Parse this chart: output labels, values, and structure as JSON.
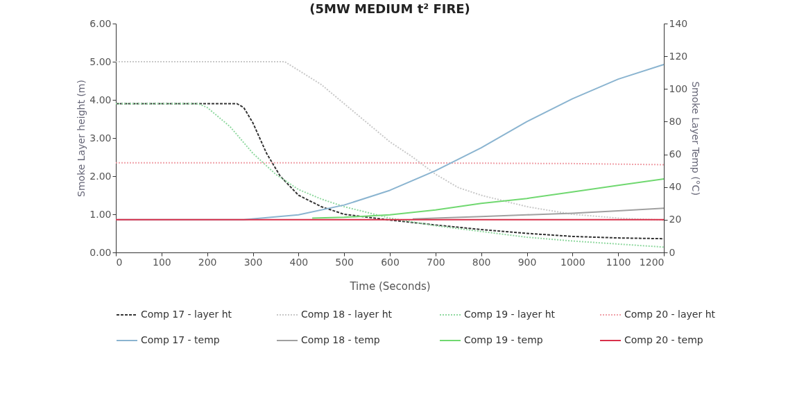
{
  "chart_data": {
    "type": "line",
    "title": "(5MW MEDIUM t² FIRE)",
    "xlabel": "Time (Seconds)",
    "ylabel": "Smoke Layer height (m)",
    "y2label": "Smoke Layer Temp (°C)",
    "xlim": [
      0,
      1200
    ],
    "xticks": [
      0,
      100,
      200,
      300,
      400,
      500,
      600,
      700,
      800,
      900,
      1000,
      1100,
      1200
    ],
    "ylim": [
      0,
      6
    ],
    "yticks": [
      {
        "value": 0,
        "label": "0.00"
      },
      {
        "value": 1,
        "label": "1.00"
      },
      {
        "value": 2,
        "label": "2.00"
      },
      {
        "value": 3,
        "label": "3.00"
      },
      {
        "value": 4,
        "label": "4.00"
      },
      {
        "value": 5,
        "label": "5.00"
      },
      {
        "value": 6,
        "label": "6.00"
      }
    ],
    "y2lim": [
      0,
      140
    ],
    "y2ticks": [
      0,
      20,
      40,
      60,
      80,
      100,
      120,
      140
    ],
    "grid": false,
    "legend": "bottom",
    "series": [
      {
        "name": "Comp 17 - layer ht",
        "color": "#333333",
        "line_style": "dashed",
        "x": [
          0,
          265,
          280,
          300,
          330,
          360,
          400,
          450,
          500,
          600,
          700,
          800,
          900,
          1000,
          1100,
          1200
        ],
        "values": [
          3.9,
          3.9,
          3.8,
          3.4,
          2.6,
          2.0,
          1.5,
          1.2,
          1.0,
          0.85,
          0.72,
          0.6,
          0.5,
          0.42,
          0.38,
          0.36
        ]
      },
      {
        "name": "Comp 18 -  layer ht",
        "color": "#c8c8c8",
        "line_style": "dotted",
        "x": [
          0,
          370,
          450,
          500,
          550,
          600,
          650,
          700,
          750,
          800,
          900,
          1000,
          1100,
          1200
        ],
        "values": [
          5.0,
          5.0,
          4.4,
          3.9,
          3.4,
          2.9,
          2.5,
          2.05,
          1.7,
          1.5,
          1.2,
          1.0,
          0.9,
          0.85
        ]
      },
      {
        "name": "Comp 19 - layer ht",
        "color": "#8fd89f",
        "line_style": "dotted",
        "x": [
          0,
          180,
          200,
          250,
          300,
          350,
          400,
          450,
          500,
          550,
          600,
          700,
          800,
          900,
          1000,
          1100,
          1200
        ],
        "values": [
          3.9,
          3.9,
          3.8,
          3.3,
          2.6,
          2.05,
          1.65,
          1.4,
          1.2,
          1.05,
          0.9,
          0.7,
          0.55,
          0.4,
          0.3,
          0.22,
          0.14
        ]
      },
      {
        "name": "Comp 20 - layer ht",
        "color": "#f0a0a8",
        "line_style": "dotted",
        "x": [
          0,
          600,
          1000,
          1200
        ],
        "values": [
          2.35,
          2.35,
          2.33,
          2.3
        ]
      },
      {
        "name": "Comp 17 - temp",
        "color": "#8ab4d0",
        "line_style": "solid",
        "axis": "y2",
        "x": [
          0,
          280,
          400,
          500,
          600,
          700,
          800,
          900,
          1000,
          1100,
          1200
        ],
        "values": [
          20,
          20,
          23,
          29,
          38,
          50,
          64,
          80,
          94,
          106,
          115
        ]
      },
      {
        "name": "Comp 18 - temp",
        "color": "#a0a0a0",
        "line_style": "solid",
        "axis": "y2",
        "x": [
          650,
          700,
          800,
          900,
          1000,
          1100,
          1200
        ],
        "values": [
          20.5,
          21,
          22,
          23,
          24,
          25.5,
          27
        ]
      },
      {
        "name": "Comp 19 - temp",
        "color": "#70d870",
        "line_style": "solid",
        "axis": "y2",
        "x": [
          430,
          500,
          600,
          700,
          800,
          900,
          1000,
          1100,
          1200
        ],
        "values": [
          21,
          21.5,
          23,
          26,
          30,
          33,
          37,
          41,
          45
        ]
      },
      {
        "name": "Comp 20 - temp",
        "color": "#d8304a",
        "line_style": "solid",
        "axis": "y2",
        "x": [
          0,
          1200
        ],
        "values": [
          20,
          20
        ]
      }
    ]
  }
}
